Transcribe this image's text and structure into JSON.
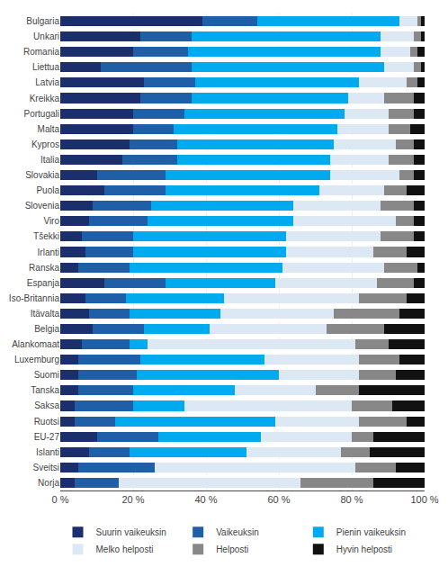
{
  "chart_data": {
    "type": "bar",
    "orientation": "horizontal",
    "stacked": true,
    "categories": [
      "Bulgaria",
      "Unkari",
      "Romania",
      "Liettua",
      "Latvia",
      "Kreikka",
      "Portugali",
      "Malta",
      "Kypros",
      "Italia",
      "Slovakia",
      "Puola",
      "Slovenia",
      "Viro",
      "Tšekki",
      "Irlanti",
      "Ranska",
      "Espanja",
      "Iso-Britannia",
      "Itävalta",
      "Belgia",
      "Alankomaat",
      "Luxemburg",
      "Suomi",
      "Tanska",
      "Saksa",
      "Ruotsi",
      "EU-27",
      "Islanti",
      "Sveitsi",
      "Norja"
    ],
    "series": [
      {
        "name": "Suurin vaikeuksin",
        "color": "#1a2f6b",
        "values": [
          39,
          22,
          20,
          11,
          23,
          22,
          20,
          20,
          19,
          17,
          10,
          12,
          9,
          8,
          6,
          7,
          5,
          12,
          7,
          8,
          9,
          6,
          5,
          5,
          5,
          4,
          4,
          10,
          8,
          5,
          4
        ]
      },
      {
        "name": "Vaikeuksin",
        "color": "#1e5fa8",
        "values": [
          15,
          14,
          15,
          25,
          14,
          14,
          14,
          11,
          13,
          15,
          19,
          17,
          16,
          16,
          14,
          13,
          14,
          17,
          11,
          11,
          14,
          13,
          17,
          16,
          15,
          16,
          11,
          17,
          11,
          21,
          12
        ]
      },
      {
        "name": "Pienin vaikeuksin",
        "color": "#00aaee",
        "values": [
          39,
          52,
          53,
          53,
          45,
          43,
          44,
          45,
          43,
          42,
          45,
          42,
          39,
          40,
          42,
          42,
          42,
          30,
          27,
          25,
          18,
          5,
          34,
          39,
          28,
          14,
          44,
          28,
          32,
          0,
          0
        ]
      },
      {
        "name": "Melko helposti",
        "color": "#dce9f5",
        "values": [
          5,
          9,
          8,
          8,
          13,
          10,
          12,
          14,
          17,
          16,
          19,
          18,
          24,
          28,
          26,
          24,
          28,
          28,
          37,
          31,
          32,
          57,
          26,
          22,
          22,
          46,
          23,
          25,
          26,
          55,
          50
        ]
      },
      {
        "name": "Helposti",
        "color": "#888888",
        "values": [
          1,
          2,
          2,
          2,
          3,
          8,
          7,
          6,
          5,
          7,
          4,
          6,
          9,
          5,
          9,
          9,
          9,
          10,
          13,
          18,
          16,
          9,
          11,
          10,
          12,
          11,
          13,
          6,
          8,
          11,
          20
        ]
      },
      {
        "name": "Hyvin helposti",
        "color": "#111111",
        "values": [
          1,
          1,
          2,
          1,
          2,
          3,
          3,
          4,
          3,
          3,
          3,
          5,
          3,
          3,
          3,
          5,
          2,
          3,
          5,
          7,
          11,
          10,
          7,
          8,
          18,
          9,
          5,
          14,
          15,
          8,
          14
        ]
      }
    ],
    "xlim": [
      0,
      100
    ],
    "xticks": [
      {
        "value": 0,
        "label": "0 %"
      },
      {
        "value": 20,
        "label": "20 %"
      },
      {
        "value": 40,
        "label": "40 %"
      },
      {
        "value": 60,
        "label": "60 %"
      },
      {
        "value": 80,
        "label": "80 %"
      },
      {
        "value": 100,
        "label": "100 %"
      }
    ],
    "grid": true,
    "legend": "bottom"
  }
}
